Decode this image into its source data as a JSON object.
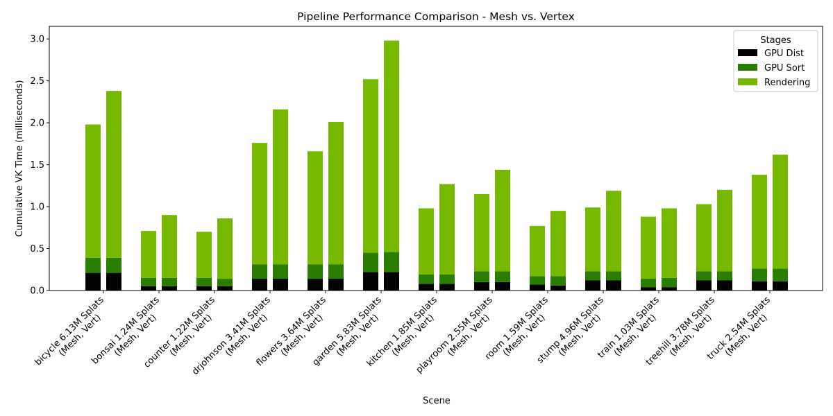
{
  "chart_data": {
    "type": "bar",
    "stacked": true,
    "title": "Pipeline Performance Comparison - Mesh vs. Vertex",
    "xlabel": "Scene",
    "ylabel": "Cumulative VK Time (milliseconds)",
    "ylim": [
      0,
      3.15
    ],
    "yticks": [
      "0.0",
      "0.5",
      "1.0",
      "1.5",
      "2.0",
      "2.5",
      "3.0"
    ],
    "grid": false,
    "legend": {
      "title": "Stages",
      "placement": "top-right",
      "entries": [
        {
          "name": "GPU Dist",
          "color": "#000000"
        },
        {
          "name": "GPU Sort",
          "color": "#2a7d00"
        },
        {
          "name": "Rendering",
          "color": "#76b900"
        }
      ]
    },
    "bar_pair_labels": [
      "Mesh",
      "Vertex"
    ],
    "categories": [
      {
        "line1": "bicycle 6.13M Splats",
        "line2": "(Mesh, Vert)",
        "mesh": {
          "gpu_dist": 0.21,
          "gpu_sort": 0.18,
          "rendering": 1.59
        },
        "vertex": {
          "gpu_dist": 0.21,
          "gpu_sort": 0.18,
          "rendering": 1.99
        }
      },
      {
        "line1": "bonsai 1.24M Splats",
        "line2": "(Mesh, Vert)",
        "mesh": {
          "gpu_dist": 0.05,
          "gpu_sort": 0.1,
          "rendering": 0.56
        },
        "vertex": {
          "gpu_dist": 0.05,
          "gpu_sort": 0.1,
          "rendering": 0.75
        }
      },
      {
        "line1": "counter 1.22M Splats",
        "line2": "(Mesh, Vert)",
        "mesh": {
          "gpu_dist": 0.05,
          "gpu_sort": 0.1,
          "rendering": 0.55
        },
        "vertex": {
          "gpu_dist": 0.05,
          "gpu_sort": 0.09,
          "rendering": 0.72
        }
      },
      {
        "line1": "drjohnson 3.41M Splats",
        "line2": "(Mesh, Vert)",
        "mesh": {
          "gpu_dist": 0.14,
          "gpu_sort": 0.17,
          "rendering": 1.45
        },
        "vertex": {
          "gpu_dist": 0.14,
          "gpu_sort": 0.17,
          "rendering": 1.85
        }
      },
      {
        "line1": "flowers 3.64M Splats",
        "line2": "(Mesh, Vert)",
        "mesh": {
          "gpu_dist": 0.14,
          "gpu_sort": 0.17,
          "rendering": 1.35
        },
        "vertex": {
          "gpu_dist": 0.14,
          "gpu_sort": 0.17,
          "rendering": 1.7
        }
      },
      {
        "line1": "garden 5.83M Splats",
        "line2": "(Mesh, Vert)",
        "mesh": {
          "gpu_dist": 0.22,
          "gpu_sort": 0.23,
          "rendering": 2.07
        },
        "vertex": {
          "gpu_dist": 0.22,
          "gpu_sort": 0.24,
          "rendering": 2.52
        }
      },
      {
        "line1": "kitchen 1.85M Splats",
        "line2": "(Mesh, Vert)",
        "mesh": {
          "gpu_dist": 0.08,
          "gpu_sort": 0.11,
          "rendering": 0.79
        },
        "vertex": {
          "gpu_dist": 0.08,
          "gpu_sort": 0.11,
          "rendering": 1.08
        }
      },
      {
        "line1": "playroom 2.55M Splats",
        "line2": "(Mesh, Vert)",
        "mesh": {
          "gpu_dist": 0.1,
          "gpu_sort": 0.13,
          "rendering": 0.92
        },
        "vertex": {
          "gpu_dist": 0.1,
          "gpu_sort": 0.13,
          "rendering": 1.21
        }
      },
      {
        "line1": "room 1.59M Splats",
        "line2": "(Mesh, Vert)",
        "mesh": {
          "gpu_dist": 0.07,
          "gpu_sort": 0.1,
          "rendering": 0.6
        },
        "vertex": {
          "gpu_dist": 0.06,
          "gpu_sort": 0.11,
          "rendering": 0.78
        }
      },
      {
        "line1": "stump 4.96M Splats",
        "line2": "(Mesh, Vert)",
        "mesh": {
          "gpu_dist": 0.12,
          "gpu_sort": 0.11,
          "rendering": 0.76
        },
        "vertex": {
          "gpu_dist": 0.12,
          "gpu_sort": 0.11,
          "rendering": 0.96
        }
      },
      {
        "line1": "train 1.03M Splats",
        "line2": "(Mesh, Vert)",
        "mesh": {
          "gpu_dist": 0.04,
          "gpu_sort": 0.1,
          "rendering": 0.74
        },
        "vertex": {
          "gpu_dist": 0.04,
          "gpu_sort": 0.11,
          "rendering": 0.83
        }
      },
      {
        "line1": "treehill 3.78M Splats",
        "line2": "(Mesh, Vert)",
        "mesh": {
          "gpu_dist": 0.12,
          "gpu_sort": 0.11,
          "rendering": 0.8
        },
        "vertex": {
          "gpu_dist": 0.12,
          "gpu_sort": 0.11,
          "rendering": 0.97
        }
      },
      {
        "line1": "truck 2.54M Splats",
        "line2": "(Mesh, Vert)",
        "mesh": {
          "gpu_dist": 0.11,
          "gpu_sort": 0.15,
          "rendering": 1.12
        },
        "vertex": {
          "gpu_dist": 0.11,
          "gpu_sort": 0.15,
          "rendering": 1.36
        }
      }
    ]
  }
}
